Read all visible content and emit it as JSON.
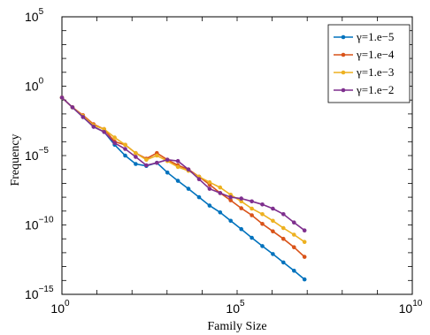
{
  "chart_data": {
    "type": "line",
    "xscale": "log",
    "yscale": "log",
    "xlabel": "Family Size",
    "ylabel": "Frequency",
    "xlim": [
      1,
      10000000000
    ],
    "ylim": [
      1e-15,
      100000
    ],
    "xticks": [
      {
        "base": "10",
        "exp": "0",
        "value": 1
      },
      {
        "base": "10",
        "exp": "5",
        "value": 100000
      },
      {
        "base": "10",
        "exp": "10",
        "value": 10000000000
      }
    ],
    "yticks": [
      {
        "base": "10",
        "exp": "5",
        "value": 100000
      },
      {
        "base": "10",
        "exp": "0",
        "value": 1
      },
      {
        "base": "10",
        "exp": "−5",
        "value": 1e-05
      },
      {
        "base": "10",
        "exp": "−10",
        "value": 1e-10
      },
      {
        "base": "10",
        "exp": "−15",
        "value": 1e-15
      }
    ],
    "grid": false,
    "legend_position": "top-right",
    "series": [
      {
        "name": "γ=1.e−5",
        "color": "#0072BD",
        "x": [
          1,
          2,
          4,
          8,
          16,
          32,
          64,
          128,
          256,
          512,
          1024,
          2048,
          4096,
          8192,
          16384,
          32768,
          65536,
          131072,
          262144,
          524288,
          1048576,
          2097152,
          4194304,
          8388608
        ],
        "y": [
          0.15,
          0.03,
          0.006,
          0.0012,
          0.0005,
          6e-05,
          1e-05,
          2.5e-06,
          1.8e-06,
          3e-06,
          6e-07,
          1.5e-07,
          4e-08,
          1e-08,
          2.5e-09,
          8e-10,
          2e-10,
          5e-11,
          1.2e-11,
          3e-12,
          8e-13,
          2e-13,
          5e-14,
          1.2e-14
        ]
      },
      {
        "name": "γ=1.e−4",
        "color": "#D95319",
        "x": [
          1,
          2,
          4,
          8,
          16,
          32,
          64,
          128,
          256,
          512,
          1024,
          2048,
          4096,
          8192,
          16384,
          32768,
          65536,
          131072,
          262144,
          524288,
          1048576,
          2097152,
          4194304,
          8388608
        ],
        "y": [
          0.15,
          0.03,
          0.008,
          0.0018,
          0.0008,
          0.0001,
          6e-05,
          1.5e-05,
          6e-06,
          1.5e-05,
          5e-06,
          2e-06,
          1e-06,
          3e-07,
          8e-08,
          2e-08,
          6e-09,
          1.6e-09,
          5e-10,
          1.2e-10,
          3.5e-11,
          1e-11,
          2.5e-12,
          5e-13
        ]
      },
      {
        "name": "γ=1.e−3",
        "color": "#EDB120",
        "x": [
          1,
          2,
          4,
          8,
          16,
          32,
          64,
          128,
          256,
          512,
          1024,
          2048,
          4096,
          8192,
          16384,
          32768,
          65536,
          131072,
          262144,
          524288,
          1048576,
          2097152,
          4194304,
          8388608
        ],
        "y": [
          0.15,
          0.03,
          0.007,
          0.0015,
          0.0008,
          0.0002,
          6e-05,
          1.5e-05,
          5e-06,
          1e-05,
          4e-06,
          1.5e-06,
          8e-07,
          3e-07,
          1.2e-07,
          5e-08,
          1.5e-08,
          5e-09,
          1.5e-09,
          6e-10,
          2e-10,
          6e-11,
          2e-11,
          6e-12
        ]
      },
      {
        "name": "γ=1.e−2",
        "color": "#7E2F8E",
        "x": [
          1,
          2,
          4,
          8,
          16,
          32,
          64,
          128,
          256,
          512,
          1024,
          2048,
          4096,
          8192,
          16384,
          32768,
          65536,
          131072,
          262144,
          524288,
          1048576,
          2097152,
          4194304,
          8388608
        ],
        "y": [
          0.15,
          0.03,
          0.006,
          0.0012,
          0.0005,
          8e-05,
          3e-05,
          8e-06,
          2e-06,
          3e-06,
          5e-06,
          4e-06,
          1e-06,
          2e-07,
          4e-08,
          2e-08,
          1e-08,
          8e-09,
          5e-09,
          3e-09,
          1.5e-09,
          6e-10,
          1.5e-10,
          4e-11
        ]
      }
    ]
  }
}
